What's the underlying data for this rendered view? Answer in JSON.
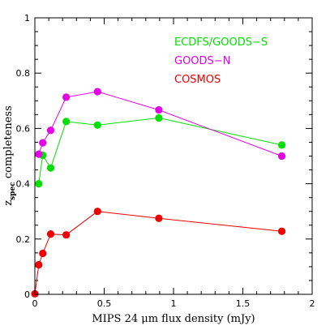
{
  "chart_data": {
    "type": "line",
    "title": "",
    "xlabel": "MIPS 24 μm flux density (mJy)",
    "ylabel": {
      "base": "z",
      "subscript": "spec",
      "rest": " completeness"
    },
    "xlim": [
      0,
      2
    ],
    "ylim": [
      0,
      1
    ],
    "x_ticks": [
      0,
      0.5,
      1,
      1.5,
      2
    ],
    "x_tick_labels": [
      "0",
      "0.5",
      "1",
      "1.5",
      "2"
    ],
    "y_ticks": [
      0,
      0.2,
      0.4,
      0.6,
      0.8,
      1
    ],
    "y_tick_labels": [
      "0",
      "0.2",
      "0.4",
      "0.6",
      "0.8",
      "1"
    ],
    "legend_position": "top-right",
    "series": [
      {
        "name": "ECDFS/GOODS−S",
        "color": "#00e000",
        "x": [
          0.028,
          0.057,
          0.114,
          0.226,
          0.452,
          0.894,
          1.781
        ],
        "y": [
          0.4,
          0.503,
          0.457,
          0.625,
          0.612,
          0.638,
          0.54
        ]
      },
      {
        "name": "GOODS−N",
        "color": "#e600e6",
        "x": [
          0.028,
          0.057,
          0.114,
          0.226,
          0.452,
          0.894,
          1.781
        ],
        "y": [
          0.507,
          0.548,
          0.593,
          0.713,
          0.733,
          0.667,
          0.5
        ]
      },
      {
        "name": "COSMOS",
        "color": "#ee0000",
        "x": [
          0.0,
          0.028,
          0.057,
          0.114,
          0.226,
          0.452,
          0.894,
          1.781
        ],
        "y": [
          0.002,
          0.107,
          0.148,
          0.218,
          0.215,
          0.3,
          0.275,
          0.228
        ]
      }
    ]
  }
}
